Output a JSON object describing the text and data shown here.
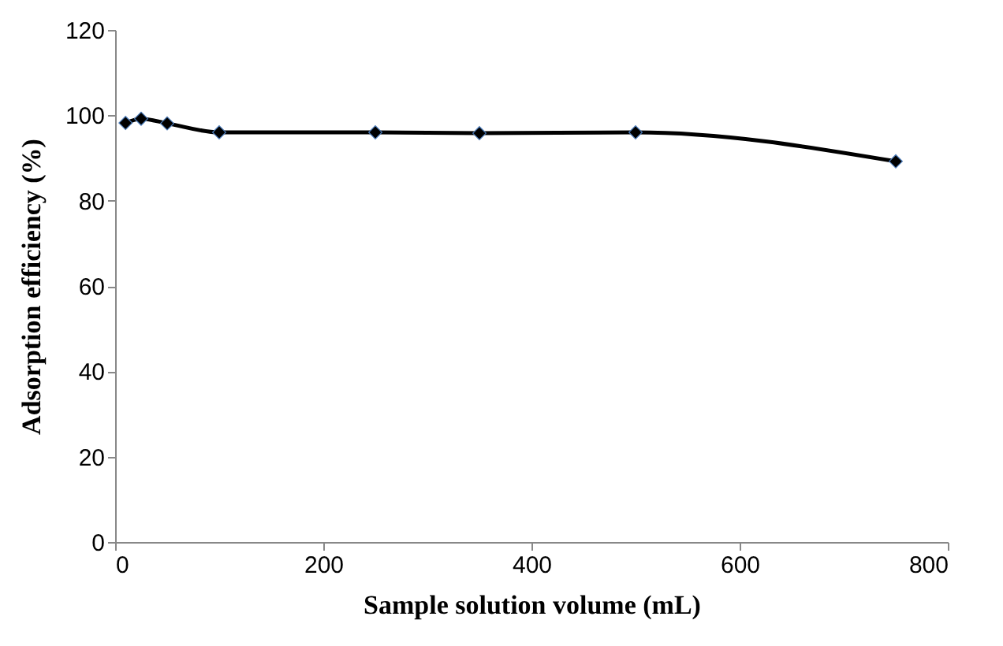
{
  "chart_data": {
    "type": "line",
    "xlabel": "Sample solution volume (mL)",
    "ylabel": "Adsorption efficiency (%)",
    "x": [
      10,
      25,
      50,
      100,
      250,
      350,
      500,
      750
    ],
    "series": [
      {
        "color": "#000000",
        "values": [
          98.2,
          99.2,
          98.1,
          96,
          96,
          95.8,
          96,
          89.2
        ]
      }
    ],
    "xlim": [
      0,
      800
    ],
    "xticks": [
      0,
      200,
      400,
      600,
      800
    ],
    "ylim": [
      0,
      120
    ],
    "yticks": [
      0,
      20,
      40,
      60,
      80,
      100,
      120
    ],
    "marker": "diamond",
    "line_style": "solid"
  }
}
